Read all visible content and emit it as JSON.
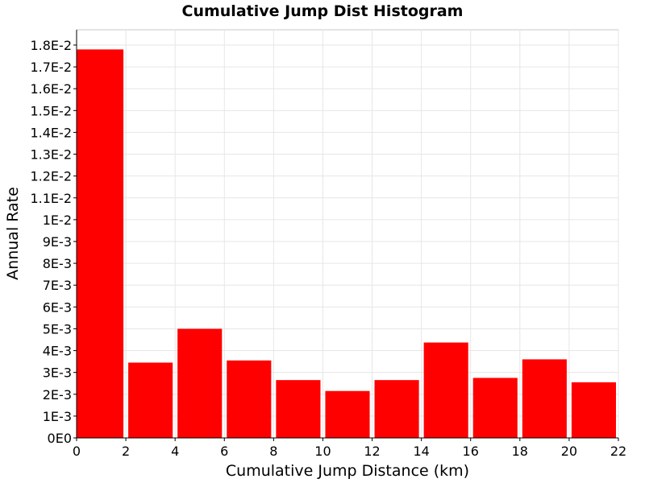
{
  "chart_data": {
    "type": "bar",
    "title": "Cumulative Jump Dist Histogram",
    "xlabel": "Cumulative Jump Distance (km)",
    "ylabel": "Annual Rate",
    "xlim": [
      0,
      22
    ],
    "ylim": [
      0,
      0.0187
    ],
    "x_ticks": [
      0,
      2,
      4,
      6,
      8,
      10,
      12,
      14,
      16,
      18,
      20,
      22
    ],
    "y_ticks": [
      {
        "value": 0,
        "label": "0E0"
      },
      {
        "value": 0.001,
        "label": "1E-3"
      },
      {
        "value": 0.002,
        "label": "2E-3"
      },
      {
        "value": 0.003,
        "label": "3E-3"
      },
      {
        "value": 0.004,
        "label": "4E-3"
      },
      {
        "value": 0.005,
        "label": "5E-3"
      },
      {
        "value": 0.006,
        "label": "6E-3"
      },
      {
        "value": 0.007,
        "label": "7E-3"
      },
      {
        "value": 0.008,
        "label": "8E-3"
      },
      {
        "value": 0.009,
        "label": "9E-3"
      },
      {
        "value": 0.01,
        "label": "1E-2"
      },
      {
        "value": 0.011,
        "label": "1.1E-2"
      },
      {
        "value": 0.012,
        "label": "1.2E-2"
      },
      {
        "value": 0.013,
        "label": "1.3E-2"
      },
      {
        "value": 0.014,
        "label": "1.4E-2"
      },
      {
        "value": 0.015,
        "label": "1.5E-2"
      },
      {
        "value": 0.016,
        "label": "1.6E-2"
      },
      {
        "value": 0.017,
        "label": "1.7E-2"
      },
      {
        "value": 0.018,
        "label": "1.8E-2"
      }
    ],
    "bins": [
      {
        "x0": 0,
        "x1": 2,
        "value": 0.0178
      },
      {
        "x0": 2,
        "x1": 4,
        "value": 0.00345
      },
      {
        "x0": 4,
        "x1": 6,
        "value": 0.005
      },
      {
        "x0": 6,
        "x1": 8,
        "value": 0.00355
      },
      {
        "x0": 8,
        "x1": 10,
        "value": 0.00265
      },
      {
        "x0": 10,
        "x1": 12,
        "value": 0.00215
      },
      {
        "x0": 12,
        "x1": 14,
        "value": 0.00265
      },
      {
        "x0": 14,
        "x1": 16,
        "value": 0.00437
      },
      {
        "x0": 16,
        "x1": 18,
        "value": 0.00275
      },
      {
        "x0": 18,
        "x1": 20,
        "value": 0.0036
      },
      {
        "x0": 20,
        "x1": 22,
        "value": 0.00255
      }
    ],
    "grid": true,
    "legend": "none",
    "bar_color": "#ff0000",
    "grid_color": "#e6e6e6"
  }
}
